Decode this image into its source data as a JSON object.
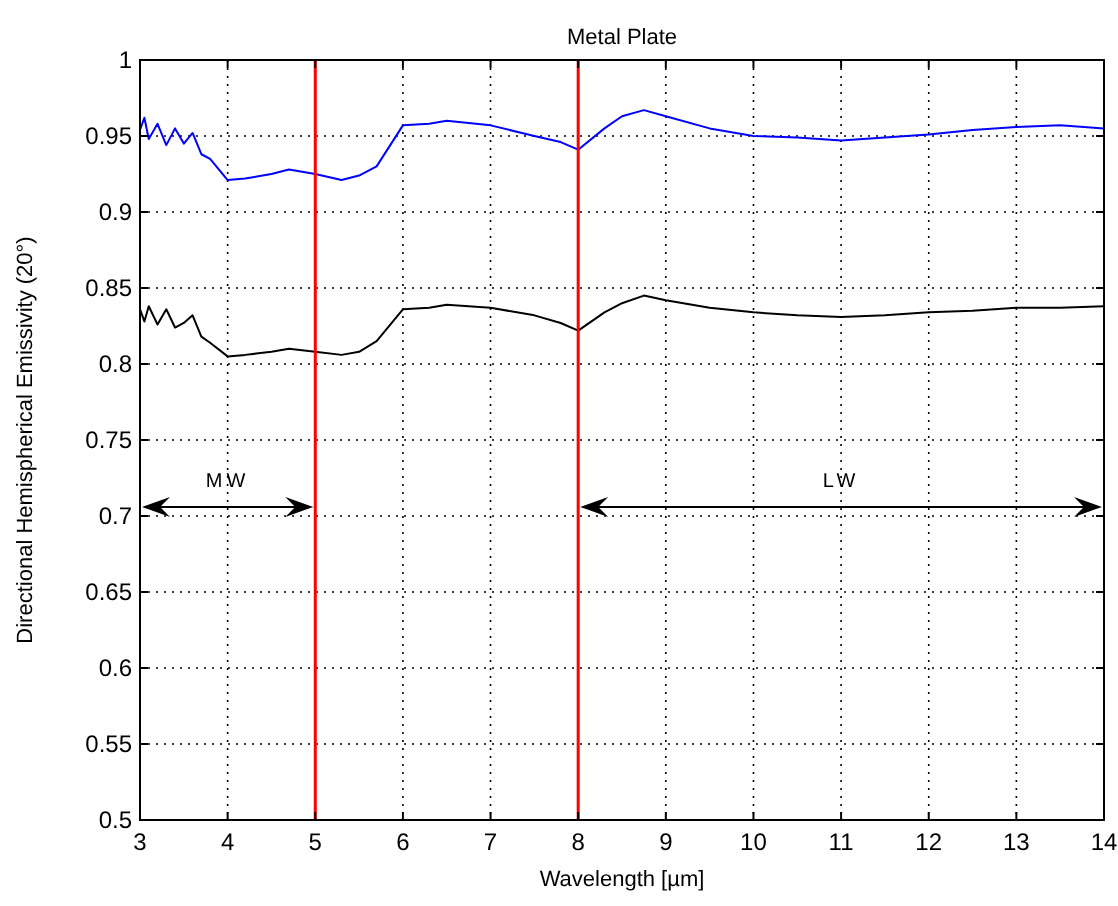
{
  "chart_data": {
    "type": "line",
    "title": "Metal Plate",
    "xlabel": "Wavelength [µm]",
    "ylabel": "Directional Hemispherical Emissivity (20°)",
    "xlim": [
      3,
      14
    ],
    "ylim": [
      0.5,
      1
    ],
    "xticks": [
      3,
      4,
      5,
      6,
      7,
      8,
      9,
      10,
      11,
      12,
      13,
      14
    ],
    "yticks": [
      0.5,
      0.55,
      0.6,
      0.65,
      0.7,
      0.75,
      0.8,
      0.85,
      0.9,
      0.95,
      1
    ],
    "grid": true,
    "line_style": "solid",
    "series": [
      {
        "color": "#0000ff",
        "x": [
          3,
          3.05,
          3.1,
          3.2,
          3.3,
          3.4,
          3.5,
          3.6,
          3.7,
          3.8,
          4,
          4.2,
          4.5,
          4.7,
          5,
          5.3,
          5.5,
          5.7,
          6,
          6.3,
          6.5,
          7,
          7.5,
          7.8,
          8,
          8.3,
          8.5,
          8.75,
          9,
          9.5,
          10,
          10.5,
          11,
          11.5,
          12,
          12.5,
          13,
          13.5,
          14
        ],
        "values": [
          0.954,
          0.962,
          0.948,
          0.958,
          0.944,
          0.955,
          0.945,
          0.952,
          0.938,
          0.935,
          0.921,
          0.922,
          0.925,
          0.928,
          0.925,
          0.921,
          0.924,
          0.93,
          0.957,
          0.958,
          0.96,
          0.957,
          0.95,
          0.946,
          0.941,
          0.955,
          0.963,
          0.967,
          0.963,
          0.955,
          0.95,
          0.949,
          0.947,
          0.949,
          0.951,
          0.954,
          0.956,
          0.957,
          0.955
        ]
      },
      {
        "color": "#000000",
        "x": [
          3,
          3.05,
          3.1,
          3.2,
          3.3,
          3.4,
          3.5,
          3.6,
          3.7,
          3.8,
          4,
          4.2,
          4.5,
          4.7,
          5,
          5.3,
          5.5,
          5.7,
          6,
          6.3,
          6.5,
          7,
          7.5,
          7.8,
          8,
          8.3,
          8.5,
          8.75,
          9,
          9.5,
          10,
          10.5,
          11,
          11.5,
          12,
          12.5,
          13,
          13.5,
          14
        ],
        "values": [
          0.836,
          0.828,
          0.838,
          0.826,
          0.836,
          0.824,
          0.827,
          0.832,
          0.818,
          0.814,
          0.805,
          0.806,
          0.808,
          0.81,
          0.808,
          0.806,
          0.808,
          0.815,
          0.836,
          0.837,
          0.839,
          0.837,
          0.832,
          0.827,
          0.822,
          0.834,
          0.84,
          0.845,
          0.842,
          0.837,
          0.834,
          0.832,
          0.831,
          0.832,
          0.834,
          0.835,
          0.837,
          0.837,
          0.838
        ]
      }
    ],
    "ref_lines": [
      {
        "axis": "x",
        "value": 5,
        "color": "#ff0000"
      },
      {
        "axis": "x",
        "value": 8,
        "color": "#ff0000"
      }
    ],
    "annotations": [
      "MW",
      "LW"
    ]
  }
}
